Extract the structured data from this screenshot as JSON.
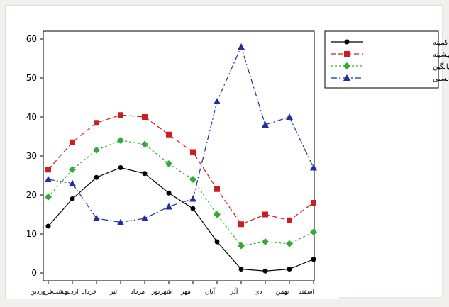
{
  "chart_data": {
    "type": "line",
    "title": "",
    "xlabel": "",
    "ylabel": "",
    "ylim": [
      -2,
      62
    ],
    "yticks": [
      0,
      10,
      20,
      30,
      40,
      50,
      60
    ],
    "grid": false,
    "legend_position": "top-right",
    "categories": [
      "فروردین",
      "اردیبهشت",
      "خرداد",
      "تیر",
      "مرداد",
      "شهریور",
      "مهر",
      "آبان",
      "آذر",
      "دی",
      "بهمن",
      "اسفند"
    ],
    "series": [
      {
        "name": "متوسط کمینه",
        "color": "#000000",
        "marker": "circle",
        "dash": "solid",
        "values": [
          12,
          19,
          24.5,
          27,
          25.5,
          20.5,
          16.5,
          8,
          1,
          0.5,
          1,
          3.5
        ]
      },
      {
        "name": "متوسط بیشینه",
        "color": "#cc1e1e",
        "marker": "square",
        "dash": "dashed",
        "values": [
          26.5,
          33.5,
          38.5,
          40.5,
          40,
          35.5,
          31,
          21.5,
          12.5,
          15,
          13.5,
          18
        ]
      },
      {
        "name": "میانگین",
        "color": "#33aa33",
        "marker": "diamond",
        "dash": "dotted",
        "values": [
          19.5,
          26.5,
          31.5,
          34,
          33,
          28,
          24,
          15,
          7,
          8,
          7.5,
          10.5
        ]
      },
      {
        "name": "میانگین رطوبت نسبی",
        "color": "#1f2f9e",
        "marker": "triangle",
        "dash": "dashdot",
        "values": [
          24,
          23,
          14,
          13,
          14,
          17,
          19,
          44,
          58,
          38,
          40,
          27
        ]
      }
    ]
  }
}
